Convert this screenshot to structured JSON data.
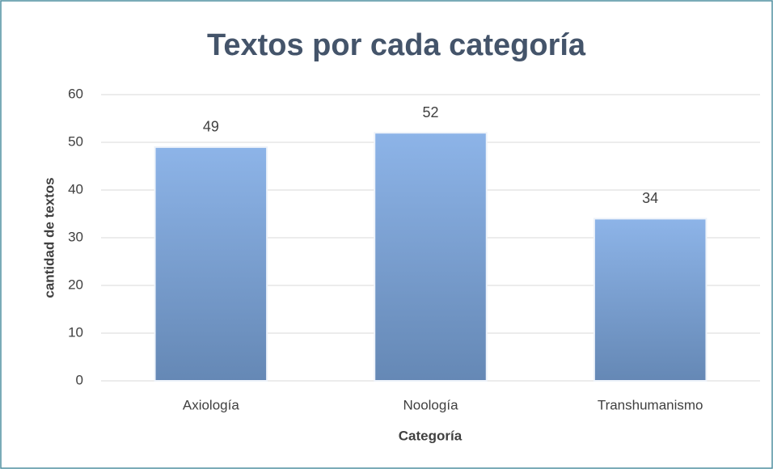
{
  "chart_data": {
    "type": "bar",
    "title": "Textos por cada categoría",
    "x_label": "Categoría",
    "y_label": "cantidad de textos",
    "categories": [
      "Axiología",
      "Noología",
      "Transhumanismo"
    ],
    "values": [
      49,
      52,
      34
    ],
    "color": "#7fa7da",
    "ylim": [
      0,
      60
    ],
    "yticks": [
      0,
      10,
      20,
      30,
      40,
      50,
      60
    ],
    "grid": true
  }
}
